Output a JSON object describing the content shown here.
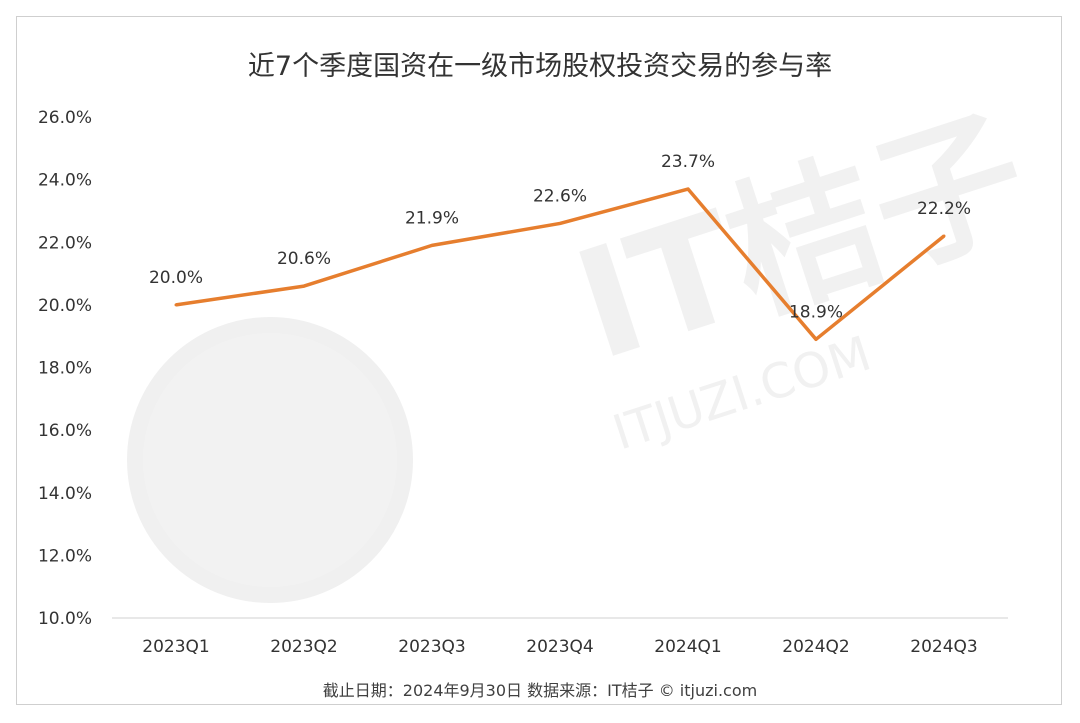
{
  "chart_data": {
    "type": "line",
    "title": "近7个季度国资在一级市场股权投资交易的参与率",
    "categories": [
      "2023Q1",
      "2023Q2",
      "2023Q3",
      "2023Q4",
      "2024Q1",
      "2024Q2",
      "2024Q3"
    ],
    "series": [
      {
        "values": [
          20.0,
          20.6,
          21.9,
          22.6,
          23.7,
          18.9,
          22.2
        ],
        "labels": [
          "20.0%",
          "20.6%",
          "21.9%",
          "22.6%",
          "23.7%",
          "18.9%",
          "22.2%"
        ],
        "color": "#e67e2e"
      }
    ],
    "ylim": [
      10.0,
      26.0
    ],
    "yticks": [
      10.0,
      12.0,
      14.0,
      16.0,
      18.0,
      20.0,
      22.0,
      24.0,
      26.0
    ],
    "ytick_labels": [
      "10.0%",
      "12.0%",
      "14.0%",
      "16.0%",
      "18.0%",
      "20.0%",
      "22.0%",
      "24.0%",
      "26.0%"
    ],
    "grid": false,
    "legend": "none"
  },
  "footer": "截止日期：2024年9月30日    数据来源：IT桔子 © itjuzi.com",
  "watermark": {
    "text_main": "IT桔子",
    "text_sub": "ITJUZI.COM"
  }
}
